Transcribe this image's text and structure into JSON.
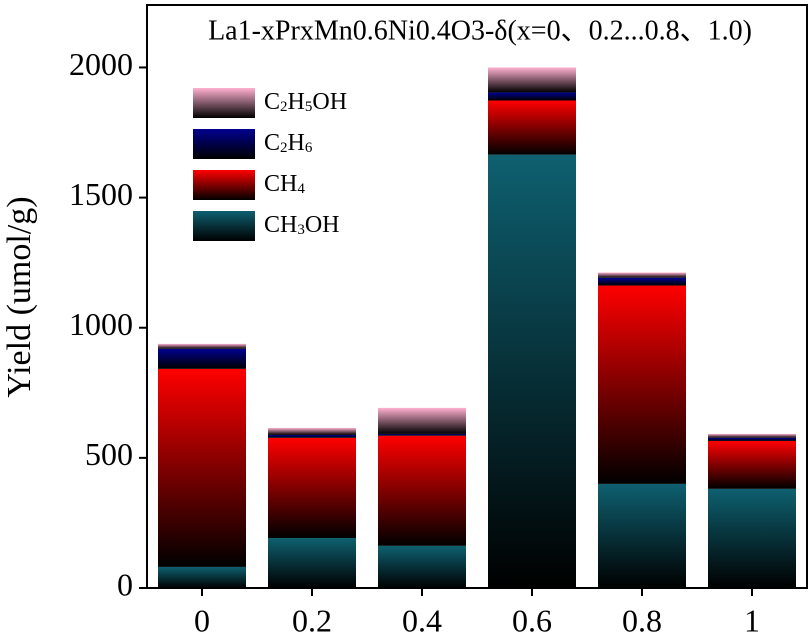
{
  "chart_data": {
    "type": "stacked-bar",
    "title": "La1-xPrxMn0.6Ni0.4O3-δ(x=0、0.2...0.8、1.0)",
    "y_label": "Yield (umol/g)",
    "categories": [
      "0",
      "0.2",
      "0.4",
      "0.6",
      "0.8",
      "1"
    ],
    "series": [
      {
        "name": "CH3OH",
        "color": "#0e6070",
        "values": [
          81,
          192,
          162,
          1665,
          400,
          381
        ]
      },
      {
        "name": "CH4",
        "color": "#ff0000",
        "values": [
          761,
          385,
          423,
          208,
          762,
          184
        ]
      },
      {
        "name": "C2H6",
        "color": "#000090",
        "values": [
          77,
          11,
          7,
          31,
          30,
          12
        ]
      },
      {
        "name": "C2H5OH",
        "color": "#ffb0d0",
        "values": [
          19,
          27,
          100,
          96,
          20,
          15
        ]
      }
    ],
    "ylim": [
      0,
      2240
    ],
    "yticks": [
      0,
      500,
      1000,
      1500,
      2000
    ]
  }
}
